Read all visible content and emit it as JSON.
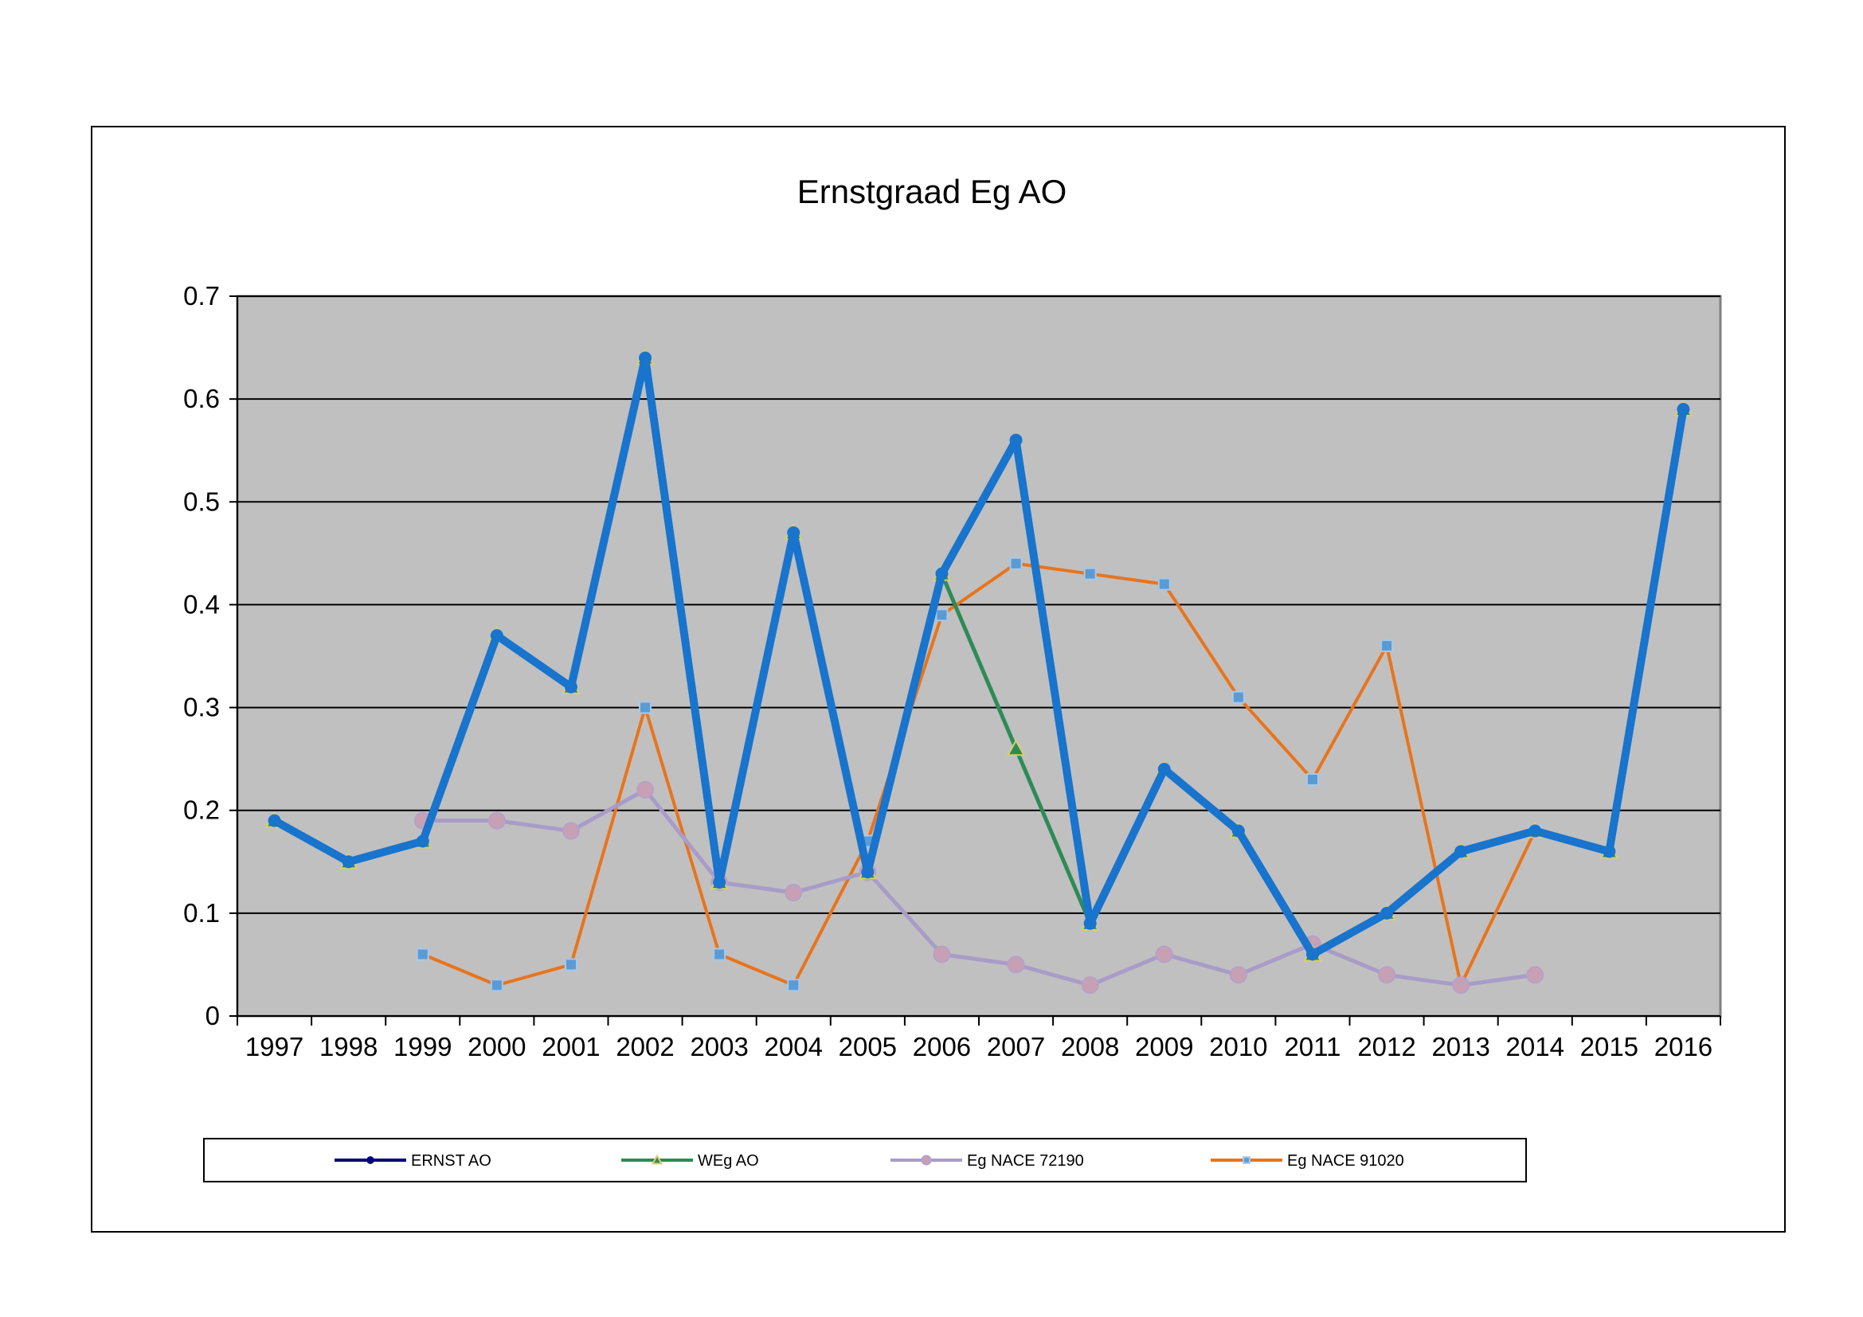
{
  "chart_data": {
    "type": "line",
    "title": "Ernstgraad Eg AO",
    "xlabel": "",
    "ylabel": "",
    "categories": [
      "1997",
      "1998",
      "1999",
      "2000",
      "2001",
      "2002",
      "2003",
      "2004",
      "2005",
      "2006",
      "2007",
      "2008",
      "2009",
      "2010",
      "2011",
      "2012",
      "2013",
      "2014",
      "2015",
      "2016"
    ],
    "ylim": [
      0,
      0.7
    ],
    "yticks": [
      0,
      0.1,
      0.2,
      0.3,
      0.4,
      0.5,
      0.6,
      0.7
    ],
    "ytick_labels": [
      "0",
      "0.1",
      "0.2",
      "0.3",
      "0.4",
      "0.5",
      "0.6",
      "0.7"
    ],
    "grid": true,
    "plot_background": "#c0c0c0",
    "legend_position": "bottom",
    "series": [
      {
        "name": "ERNST AO",
        "color": "#1874cd",
        "legend_color": "#000080",
        "marker": "circle",
        "values": [
          0.19,
          0.15,
          0.17,
          0.37,
          0.32,
          0.64,
          0.13,
          0.47,
          0.14,
          0.43,
          0.56,
          0.09,
          0.24,
          0.18,
          0.06,
          0.1,
          0.16,
          0.18,
          0.16,
          0.59
        ]
      },
      {
        "name": "WEg AO",
        "color": "#2e8b57",
        "legend_color": "#2e8b57",
        "marker": "triangle",
        "values": [
          0.19,
          0.15,
          0.17,
          0.37,
          0.32,
          0.64,
          0.13,
          0.47,
          0.14,
          0.43,
          0.26,
          0.09,
          0.24,
          0.18,
          0.06,
          0.1,
          0.16,
          0.18,
          0.16,
          0.59
        ]
      },
      {
        "name": "Eg NACE 72190",
        "color": "#a89cc8",
        "legend_color": "#a89cc8",
        "marker": "circle",
        "marker_fill": "#c8a0b4",
        "values": [
          null,
          null,
          0.19,
          0.19,
          0.18,
          0.22,
          0.13,
          0.12,
          0.14,
          0.06,
          0.05,
          0.03,
          0.06,
          0.04,
          0.07,
          0.04,
          0.03,
          0.04,
          null,
          null
        ]
      },
      {
        "name": "Eg NACE 91020",
        "color": "#e8741c",
        "legend_color": "#e8741c",
        "marker": "square",
        "marker_fill": "#5b9bd5",
        "values": [
          null,
          null,
          0.06,
          0.03,
          0.05,
          0.3,
          0.06,
          0.03,
          0.17,
          0.39,
          0.44,
          0.43,
          0.42,
          0.31,
          0.23,
          0.36,
          0.03,
          0.18,
          null,
          null
        ]
      }
    ]
  }
}
